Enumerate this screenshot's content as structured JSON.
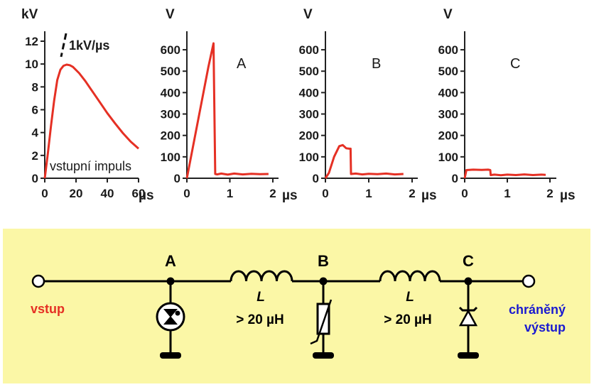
{
  "colors": {
    "trace": "#e53024",
    "panel": "#fbf7a6",
    "input": "#e53024",
    "output": "#1a1ad0"
  },
  "chart_data": [
    {
      "type": "line",
      "ylabel": "kV",
      "xunit": "µs",
      "x_ticks": [
        "0",
        "20",
        "40",
        "60"
      ],
      "y_ticks": [
        "0",
        "2",
        "4",
        "6",
        "8",
        "10",
        "12"
      ],
      "xlim": [
        0,
        60
      ],
      "ylim": [
        0,
        12
      ],
      "annotation": "1kV/µs",
      "inner_label": "vstupní impuls",
      "series": [
        {
          "x": [
            0,
            2,
            4,
            6,
            8,
            10,
            12,
            14,
            16,
            18,
            22,
            26,
            30,
            35,
            40,
            45,
            50,
            55,
            60
          ],
          "y": [
            0,
            2.2,
            4.6,
            6.8,
            8.6,
            9.5,
            9.85,
            9.95,
            9.9,
            9.75,
            9.2,
            8.5,
            7.7,
            6.7,
            5.7,
            4.8,
            3.95,
            3.2,
            2.6
          ]
        }
      ]
    },
    {
      "type": "line",
      "panel_label": "A",
      "ylabel": "V",
      "xunit": "µs",
      "x_ticks": [
        "0",
        "1",
        "2"
      ],
      "y_ticks": [
        "0",
        "100",
        "200",
        "300",
        "400",
        "500",
        "600"
      ],
      "xlim": [
        0,
        2
      ],
      "ylim": [
        0,
        650
      ],
      "series": [
        {
          "x": [
            0,
            0.5,
            0.62,
            0.66,
            0.7,
            0.8,
            0.95,
            1.1,
            1.3,
            1.5,
            1.7,
            1.9
          ],
          "y": [
            0,
            520,
            630,
            20,
            18,
            22,
            17,
            22,
            18,
            21,
            19,
            20
          ]
        }
      ]
    },
    {
      "type": "line",
      "panel_label": "B",
      "ylabel": "V",
      "xunit": "µs",
      "x_ticks": [
        "0",
        "1",
        "2"
      ],
      "y_ticks": [
        "0",
        "100",
        "200",
        "300",
        "400",
        "500",
        "600"
      ],
      "xlim": [
        0,
        2
      ],
      "ylim": [
        0,
        650
      ],
      "series": [
        {
          "x": [
            0,
            0.08,
            0.2,
            0.32,
            0.4,
            0.48,
            0.55,
            0.58,
            0.59,
            0.7,
            0.85,
            1.0,
            1.2,
            1.4,
            1.6,
            1.8
          ],
          "y": [
            0,
            25,
            100,
            150,
            155,
            140,
            138,
            138,
            20,
            22,
            18,
            21,
            19,
            22,
            18,
            20
          ]
        }
      ]
    },
    {
      "type": "line",
      "panel_label": "C",
      "ylabel": "V",
      "xunit": "µs",
      "x_ticks": [
        "0",
        "1",
        "2"
      ],
      "y_ticks": [
        "0",
        "100",
        "200",
        "300",
        "400",
        "500",
        "600"
      ],
      "xlim": [
        0,
        2
      ],
      "ylim": [
        0,
        650
      ],
      "series": [
        {
          "x": [
            0,
            0.04,
            0.2,
            0.4,
            0.55,
            0.6,
            0.61,
            0.7,
            0.85,
            1.0,
            1.2,
            1.4,
            1.6,
            1.8,
            1.9
          ],
          "y": [
            0,
            38,
            40,
            39,
            40,
            38,
            15,
            17,
            14,
            17,
            15,
            18,
            15,
            17,
            16
          ]
        }
      ]
    }
  ],
  "circuit": {
    "node_a": "A",
    "node_b": "B",
    "node_c": "C",
    "inductor_symbol": "L",
    "inductor_value": "> 20 µH",
    "input_label": "vstup",
    "output_line1": "chráněný",
    "output_line2": "výstup"
  }
}
